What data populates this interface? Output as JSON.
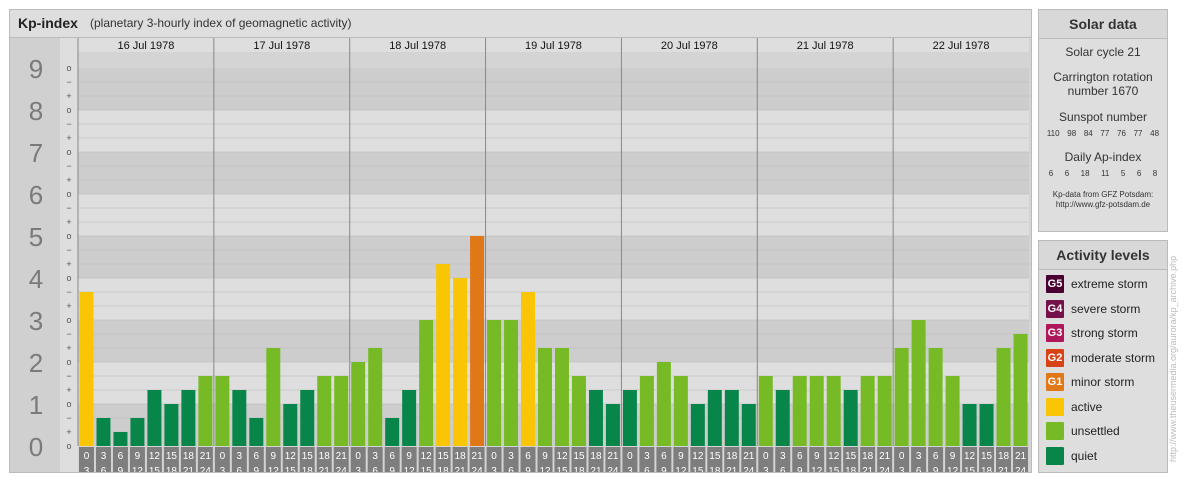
{
  "header": {
    "title": "Kp-index",
    "subtitle": "(planetary 3-hourly index of geomagnetic activity)"
  },
  "chart_data": {
    "type": "bar",
    "ylim": [
      0,
      9
    ],
    "y_ticks": [
      "0",
      "1",
      "2",
      "3",
      "4",
      "5",
      "6",
      "7",
      "8",
      "9"
    ],
    "minor_ticks": [
      "o",
      "+",
      "−"
    ],
    "days": [
      "16 Jul 1978",
      "17 Jul 1978",
      "18 Jul 1978",
      "19 Jul 1978",
      "20 Jul 1978",
      "21 Jul 1978",
      "22 Jul 1978"
    ],
    "hour_labels": [
      [
        "0",
        "3"
      ],
      [
        "3",
        "6"
      ],
      [
        "6",
        "9"
      ],
      [
        "9",
        "12"
      ],
      [
        "12",
        "15"
      ],
      [
        "15",
        "18"
      ],
      [
        "18",
        "21"
      ],
      [
        "21",
        "24"
      ]
    ],
    "values": [
      3.667,
      0.667,
      0.333,
      0.667,
      1.333,
      1.0,
      1.333,
      1.667,
      1.667,
      1.333,
      0.667,
      2.333,
      1.0,
      1.333,
      1.667,
      1.667,
      2.0,
      2.333,
      0.667,
      1.333,
      3.0,
      4.333,
      4.0,
      5.0,
      3.0,
      3.0,
      3.667,
      2.333,
      2.333,
      1.667,
      1.333,
      1.0,
      1.333,
      1.667,
      2.0,
      1.667,
      1.0,
      1.333,
      1.333,
      1.0,
      1.667,
      1.333,
      1.667,
      1.667,
      1.667,
      1.333,
      1.667,
      1.667,
      2.333,
      3.0,
      2.333,
      1.667,
      1.0,
      1.0,
      2.333,
      2.667
    ],
    "colors": {
      "quiet": "#08864a",
      "unsettled": "#76bb25",
      "active": "#f9c505",
      "minor_storm": "#e07818",
      "moderate_storm": "#d84315",
      "strong_storm": "#b0175a",
      "severe_storm": "#74104a",
      "extreme_storm": "#4a0030"
    }
  },
  "solar": {
    "title": "Solar data",
    "cycle": "Solar cycle 21",
    "carrington_line1": "Carrington rotation",
    "carrington_line2": "number 1670",
    "sunspot_label": "Sunspot number",
    "sunspot_values": [
      "110",
      "98",
      "84",
      "77",
      "76",
      "77",
      "48"
    ],
    "ap_label": "Daily Ap-index",
    "ap_values": [
      "6",
      "6",
      "18",
      "11",
      "5",
      "6",
      "8"
    ],
    "credit_line1": "Kp-data from GFZ Potsdam:",
    "credit_line2": "http://www.gfz-potsdam.de"
  },
  "activity": {
    "title": "Activity levels",
    "levels": [
      {
        "badge": "G5",
        "label": "extreme storm",
        "color": "#4a0030"
      },
      {
        "badge": "G4",
        "label": "severe storm",
        "color": "#74104a"
      },
      {
        "badge": "G3",
        "label": "strong storm",
        "color": "#b0175a"
      },
      {
        "badge": "G2",
        "label": "moderate storm",
        "color": "#d84315"
      },
      {
        "badge": "G1",
        "label": "minor storm",
        "color": "#e07818"
      },
      {
        "badge": "",
        "label": "active",
        "color": "#f9c505"
      },
      {
        "badge": "",
        "label": "unsettled",
        "color": "#76bb25"
      },
      {
        "badge": "",
        "label": "quiet",
        "color": "#08864a"
      }
    ]
  },
  "watermark": "http://www.theusermedia.org/aurora/kp_archive.php"
}
